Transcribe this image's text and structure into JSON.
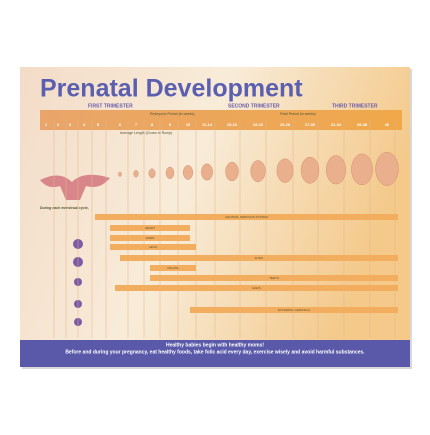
{
  "poster": {
    "title": "Prenatal Development",
    "trimesters": [
      "FIRST TRIMESTER",
      "SECOND TRIMESTER",
      "THIRD TRIMESTER"
    ],
    "periods": [
      "Embryonic Period (in weeks)",
      "Fetal Period (in weeks)"
    ],
    "length_caption": "Average Length (Crown to Rump)",
    "weeks": [
      "1",
      "2",
      "3",
      "4",
      "5",
      "6",
      "7",
      "8",
      "9",
      "10",
      "11-14",
      "15-16",
      "19-22",
      "23-26",
      "27-30",
      "31-34",
      "35-38",
      "40"
    ],
    "organs": [
      "CENTRAL NERVOUS SYSTEM",
      "HEART",
      "ARMS",
      "LEGS",
      "EYES",
      "PALATE",
      "TEETH",
      "EARS",
      "EXTERNAL GENITALIA"
    ],
    "side_heading": "During each menstrual cycle,",
    "footer": [
      "Healthy babies begin with healthy moms!",
      "Before and during your pregnancy, eat healthy foods, take folic acid every day, exercise wisely and avoid harmful substances."
    ]
  }
}
